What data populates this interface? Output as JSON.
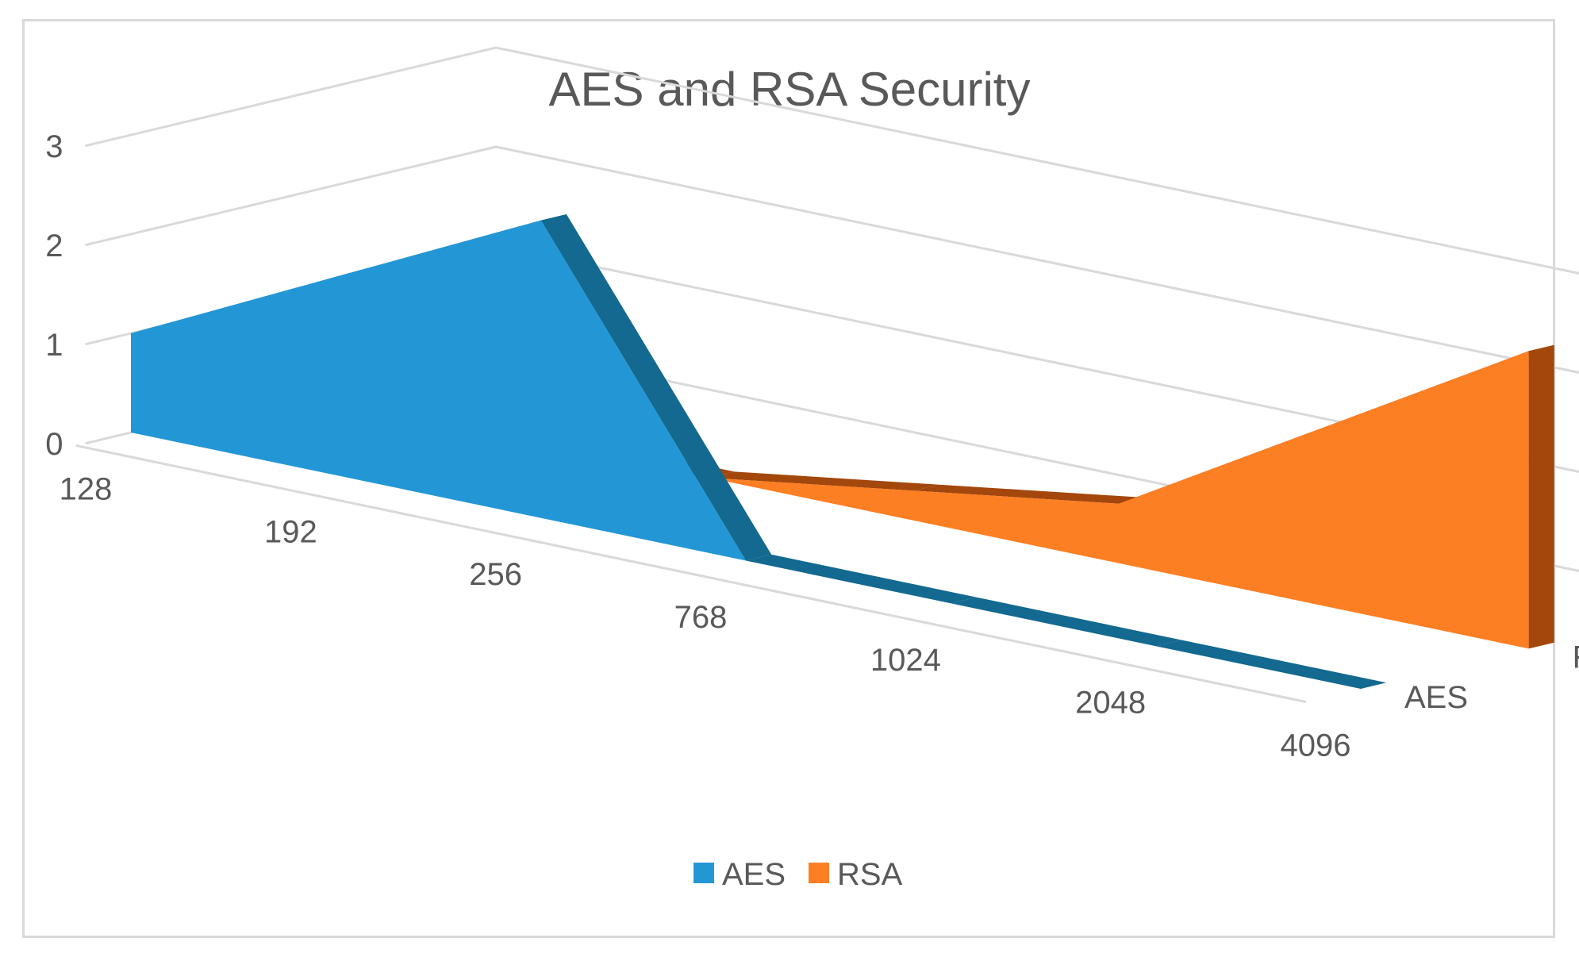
{
  "chart_data": {
    "type": "area",
    "variant": "3d-area",
    "title": "AES and RSA Security",
    "categories": [
      "128",
      "192",
      "256",
      "768",
      "1024",
      "2048",
      "4096"
    ],
    "series": [
      {
        "name": "AES",
        "values": [
          1,
          2,
          3,
          0,
          0,
          0,
          0
        ]
      },
      {
        "name": "RSA",
        "values": [
          0,
          0,
          0,
          0.3,
          0.6,
          1.8,
          3
        ]
      }
    ],
    "depth_labels": [
      "AES",
      "RSA"
    ],
    "y_ticks": [
      "0",
      "1",
      "2",
      "3"
    ],
    "ylim": [
      0,
      3
    ],
    "grid": true,
    "legend": "bottom",
    "colors": {
      "AES": "#2397d6",
      "AES_dark": "#13698f",
      "RSA": "#fd7f23",
      "RSA_dark": "#a3470c",
      "grid": "#d9d9d9",
      "text": "#595959"
    }
  }
}
